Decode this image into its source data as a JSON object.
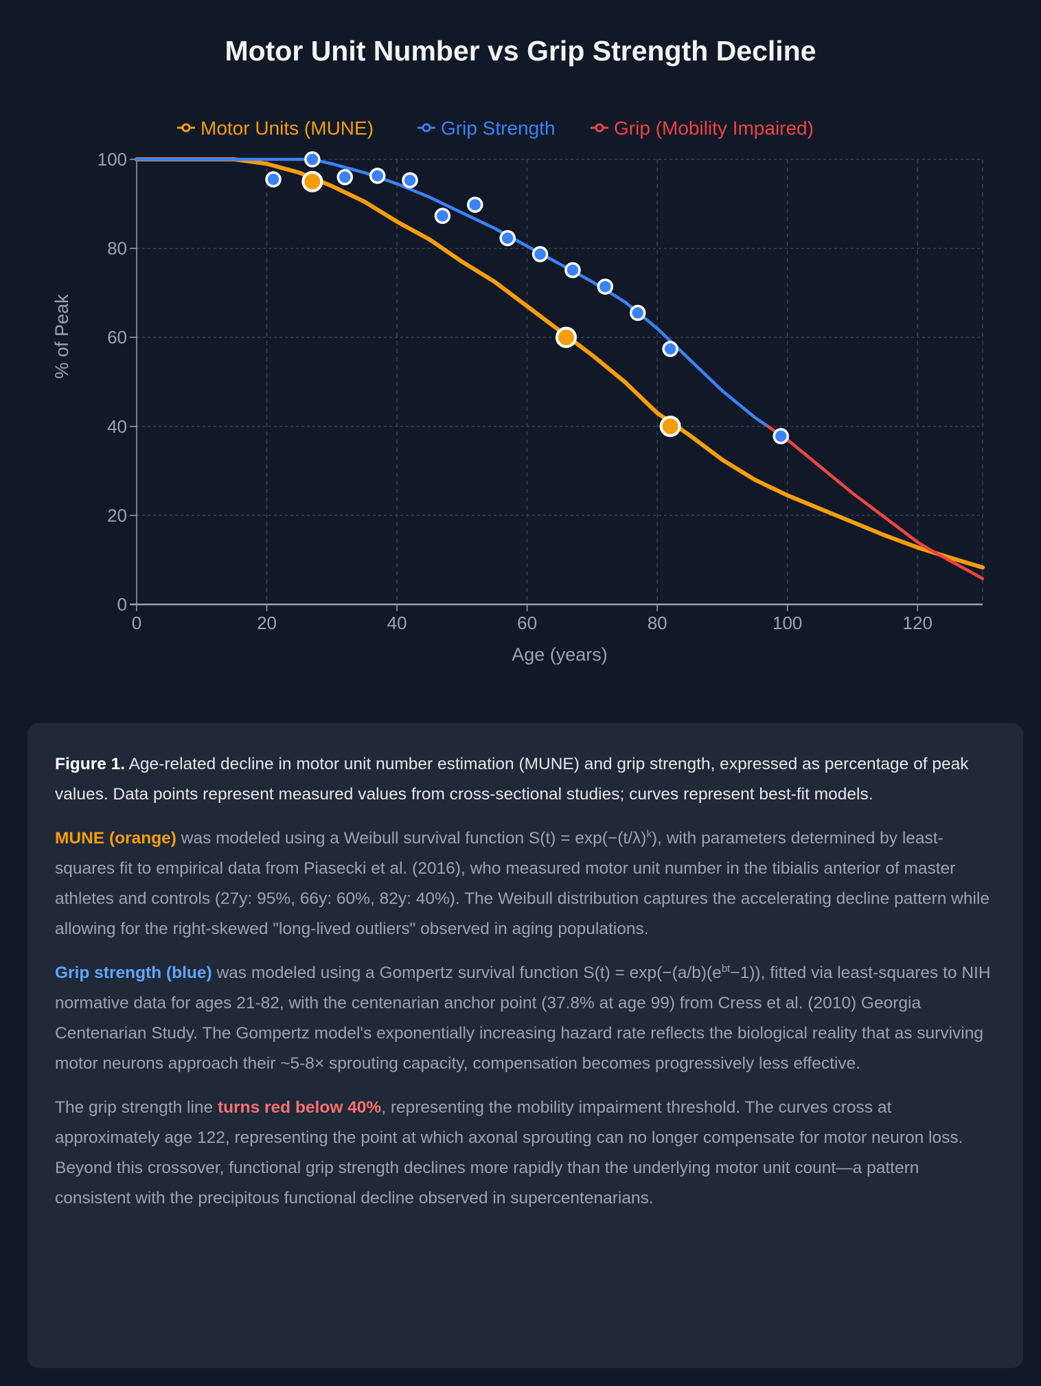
{
  "chart_data": {
    "type": "line",
    "title": "Motor Unit Number vs Grip Strength Decline",
    "xlabel": "Age (years)",
    "ylabel": "% of Peak",
    "xlim": [
      0,
      130
    ],
    "ylim": [
      0,
      100
    ],
    "xticks": [
      "0",
      "20",
      "40",
      "60",
      "80",
      "100",
      "120"
    ],
    "yticks": [
      "0",
      "20",
      "40",
      "60",
      "80",
      "100"
    ],
    "grid": true,
    "legend_position": "top-center",
    "legend": [
      "Motor Units (MUNE)",
      "Grip Strength",
      "Grip (Mobility Impaired)"
    ],
    "colors": {
      "mune": "#f59e0b",
      "grip": "#3b82f6",
      "impaired": "#ef4444"
    },
    "series": [
      {
        "name": "Motor Units (MUNE)",
        "kind": "curve",
        "x": [
          0,
          10,
          15,
          20,
          25,
          30,
          35,
          40,
          45,
          50,
          55,
          60,
          65,
          70,
          75,
          80,
          85,
          90,
          95,
          100,
          105,
          110,
          115,
          120,
          125,
          130
        ],
        "y": [
          100,
          100,
          100,
          99,
          97,
          94,
          90.5,
          86,
          82,
          77,
          72.5,
          67,
          61.5,
          56,
          50,
          43,
          38,
          32.5,
          28,
          24.5,
          21.5,
          18.5,
          15.5,
          12.8,
          10.5,
          8.3
        ]
      },
      {
        "name": "Grip Strength",
        "kind": "curve",
        "x": [
          0,
          20,
          27,
          30,
          35,
          40,
          45,
          50,
          55,
          60,
          65,
          70,
          75,
          80,
          85,
          90,
          95,
          97
        ],
        "y": [
          100,
          100,
          100,
          99,
          97,
          94.5,
          91.5,
          88,
          84.5,
          80.5,
          76.5,
          72.5,
          68,
          62,
          55,
          48,
          42,
          40
        ]
      },
      {
        "name": "Grip (Mobility Impaired)",
        "kind": "curve",
        "x": [
          97,
          100,
          105,
          110,
          115,
          120,
          122,
          125,
          130
        ],
        "y": [
          40,
          37,
          31,
          25,
          19.5,
          14,
          12.2,
          9.8,
          5.8
        ]
      },
      {
        "name": "MUNE measured",
        "kind": "points",
        "x": [
          27,
          66,
          82
        ],
        "y": [
          95,
          60,
          40
        ]
      },
      {
        "name": "Grip measured",
        "kind": "points",
        "x": [
          21,
          27,
          32,
          37,
          42,
          47,
          52,
          57,
          62,
          67,
          72,
          77,
          82,
          99
        ],
        "y": [
          95.5,
          100,
          96,
          96.3,
          95.3,
          87.3,
          89.8,
          82.3,
          78.7,
          75.1,
          71.4,
          65.5,
          57.4,
          37.8
        ]
      }
    ]
  },
  "caption": {
    "p1": {
      "label": "Figure 1.",
      "text": " Age-related decline in motor unit number estimation (MUNE) and grip strength, expressed as percentage of peak values. Data points represent measured values from cross-sectional studies; curves represent best-fit models."
    },
    "p2": {
      "highlight": "MUNE (orange)",
      "text_a": " was modeled using a Weibull survival function S(t) = exp(−(t/λ)",
      "sup": "k",
      "text_b": "), with parameters determined by least-squares fit to empirical data from Piasecki et al. (2016), who measured motor unit number in the tibialis anterior of master athletes and controls (27y: 95%, 66y: 60%, 82y: 40%). The Weibull distribution captures the accelerating decline pattern while allowing for the right-skewed \"long-lived outliers\" observed in aging populations."
    },
    "p3": {
      "highlight": "Grip strength (blue)",
      "text_a": " was modeled using a Gompertz survival function S(t) = exp(−(a/b)(e",
      "sup": "bt",
      "text_b": "−1)), fitted via least-squares to NIH normative data for ages 21-82, with the centenarian anchor point (37.8% at age 99) from Cress et al. (2010) Georgia Centenarian Study. The Gompertz model's exponentially increasing hazard rate reflects the biological reality that as surviving motor neurons approach their ~5-8× sprouting capacity, compensation becomes progressively less effective."
    },
    "p4": {
      "text_a": "The grip strength line ",
      "highlight": "turns red below 40%",
      "text_b": ", representing the mobility impairment threshold. The curves cross at approximately age 122, representing the point at which axonal sprouting can no longer compensate for motor neuron loss. Beyond this crossover, functional grip strength declines more rapidly than the underlying motor unit count—a pattern consistent with the precipitous functional decline observed in supercentenarians."
    }
  }
}
